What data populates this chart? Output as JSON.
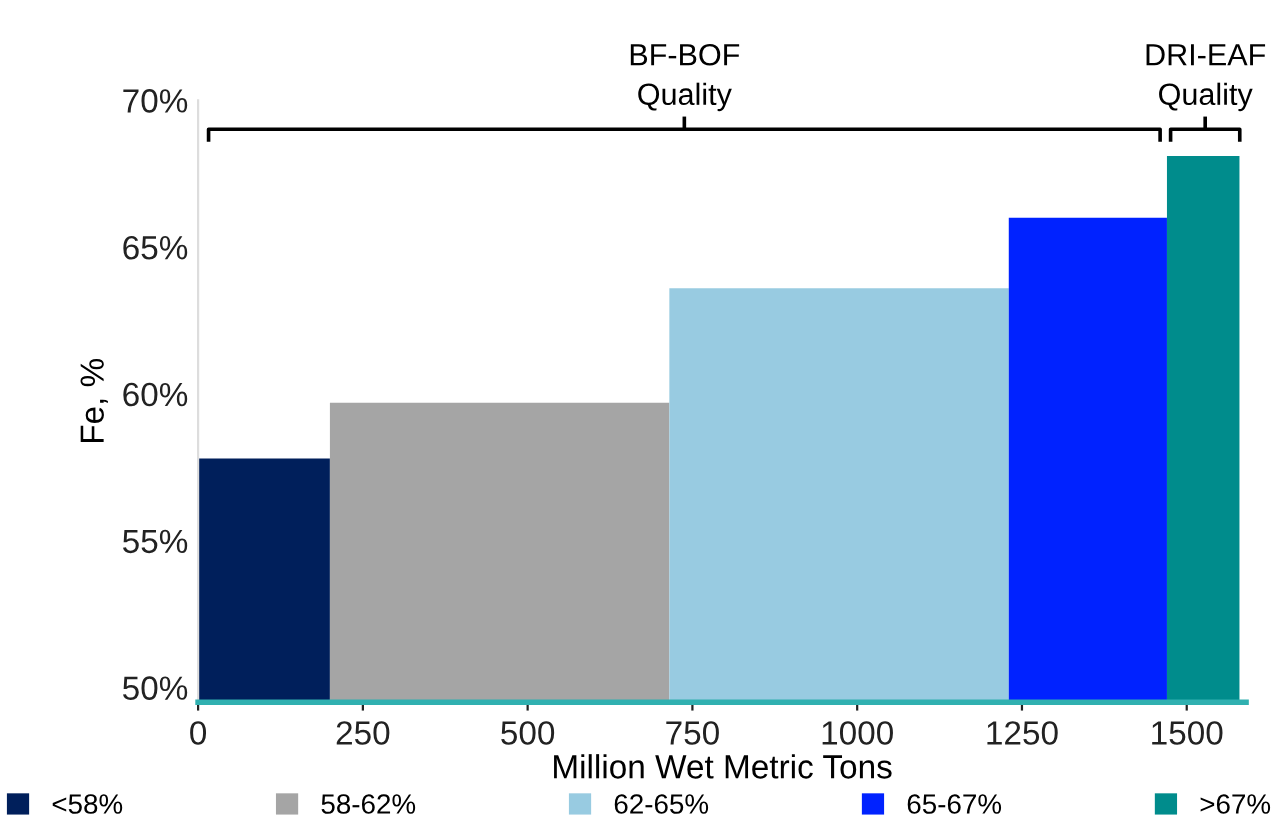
{
  "chart_data": {
    "type": "area",
    "xlabel": "Million Wet Metric Tons",
    "ylabel": "Fe, %",
    "series": [
      {
        "name": "<58%",
        "color": "#001f5b",
        "x": [
          0,
          200
        ],
        "values": [
          57.8,
          57.8
        ]
      },
      {
        "name": "58-62%",
        "color": "#a5a5a5",
        "x": [
          200,
          715
        ],
        "values": [
          59.7,
          59.7
        ]
      },
      {
        "name": "62-65%",
        "color": "#98cbe1",
        "x": [
          715,
          1230
        ],
        "values": [
          63.6,
          63.6
        ]
      },
      {
        "name": "65-67%",
        "color": "#0022ff",
        "x": [
          1230,
          1470
        ],
        "values": [
          66.0,
          66.0
        ]
      },
      {
        "name": ">67%",
        "color": "#008c8c",
        "x": [
          1470,
          1580
        ],
        "values": [
          68.1,
          68.1
        ]
      }
    ],
    "xlim": [
      0,
      1590
    ],
    "xticks": [
      0,
      250,
      500,
      750,
      1000,
      1250,
      1500
    ],
    "ylim": [
      49.5,
      70
    ],
    "yticks": [
      {
        "value": 50,
        "label": "50%"
      },
      {
        "value": 55,
        "label": "55%"
      },
      {
        "value": 60,
        "label": "60%"
      },
      {
        "value": 65,
        "label": "65%"
      },
      {
        "value": 70,
        "label": "70%"
      }
    ],
    "annotations": [
      "BF-BOF\nQuality",
      "DRI-EAF\nQuality"
    ],
    "grid": false,
    "legend": "bottom"
  }
}
